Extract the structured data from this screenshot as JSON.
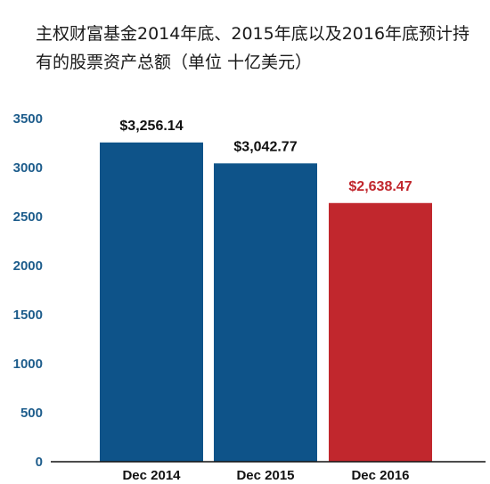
{
  "chart_data": {
    "type": "bar",
    "title": "主权财富基金2014年底、2015年底以及2016年底预计持有的股票资产总额（单位 十亿美元）",
    "categories": [
      "Dec 2014",
      "Dec 2015",
      "Dec 2016"
    ],
    "values": [
      3256.14,
      3042.77,
      2638.47
    ],
    "data_labels": [
      "$3,256.14",
      "$3,042.77",
      "$2,638.47"
    ],
    "ylim": [
      0,
      3500
    ],
    "yticks": [
      0,
      500,
      1000,
      1500,
      2000,
      2500,
      3000,
      3500
    ],
    "grid": false,
    "colors": {
      "bar": [
        "#0e5389",
        "#0e5389",
        "#c1272d"
      ],
      "label": [
        "#111111",
        "#111111",
        "#c1272d"
      ],
      "category": [
        "#111111",
        "#111111",
        "#c1272d"
      ],
      "tick": "#1e5d8c",
      "axis": "#111111"
    }
  }
}
